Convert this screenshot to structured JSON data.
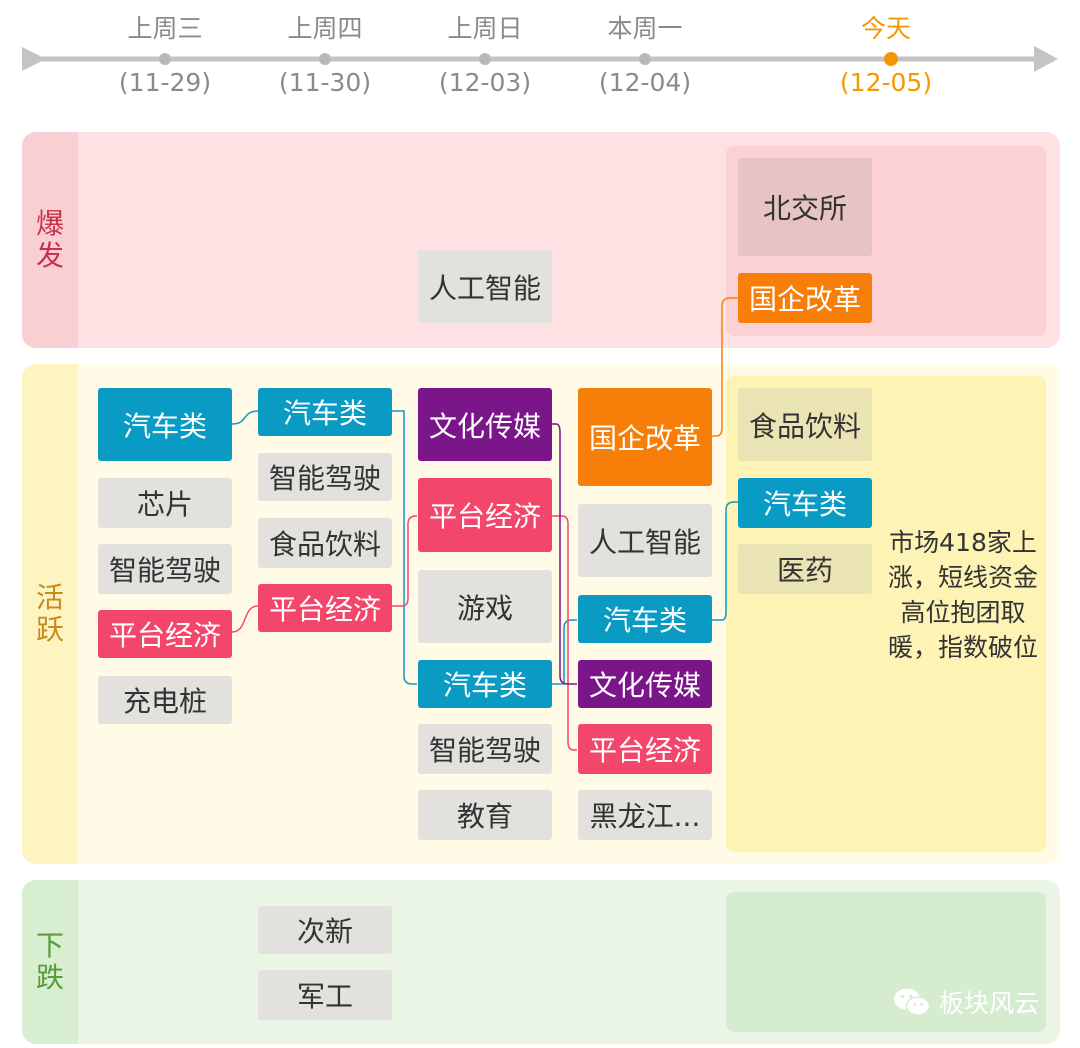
{
  "timeline": {
    "days": [
      {
        "name": "上周三",
        "date": "(11-29)",
        "today": false
      },
      {
        "name": "上周四",
        "date": "(11-30)",
        "today": false
      },
      {
        "name": "上周日",
        "date": "(12-03)",
        "today": false
      },
      {
        "name": "本周一",
        "date": "(12-04)",
        "today": false
      },
      {
        "name": "今天",
        "date": "(12-05)",
        "today": true
      }
    ]
  },
  "zones": {
    "burst": {
      "label_top": "爆",
      "label_bottom": "发"
    },
    "active": {
      "label_top": "活",
      "label_bottom": "跃"
    },
    "fall": {
      "label_top": "下",
      "label_bottom": "跌"
    }
  },
  "columns": {
    "col1": {
      "active": [
        "汽车类",
        "芯片",
        "智能驾驶",
        "平台经济",
        "充电桩"
      ]
    },
    "col2": {
      "active": [
        "汽车类",
        "智能驾驶",
        "食品饮料",
        "平台经济"
      ],
      "fall": [
        "次新",
        "军工"
      ]
    },
    "col3": {
      "burst": [
        "人工智能"
      ],
      "active": [
        "文化传媒",
        "平台经济",
        "游戏",
        "汽车类",
        "智能驾驶",
        "教育"
      ]
    },
    "col4": {
      "active": [
        "国企改革",
        "人工智能",
        "汽车类",
        "文化传媒",
        "平台经济",
        "黑龙江..."
      ]
    },
    "col5": {
      "burst": [
        "北交所",
        "国企改革"
      ],
      "active": [
        "食品饮料",
        "汽车类",
        "医药"
      ]
    }
  },
  "note": "市场418家上涨，短线资金高位抱团取暖，指数破位",
  "brand": "板块风云",
  "colors": {
    "automotive": "#0a9bc4",
    "platform_economy": "#f3466b",
    "media": "#7b158a",
    "soe_reform": "#f77f09",
    "neutral": "#e3e1dd",
    "today": "#f39800"
  }
}
